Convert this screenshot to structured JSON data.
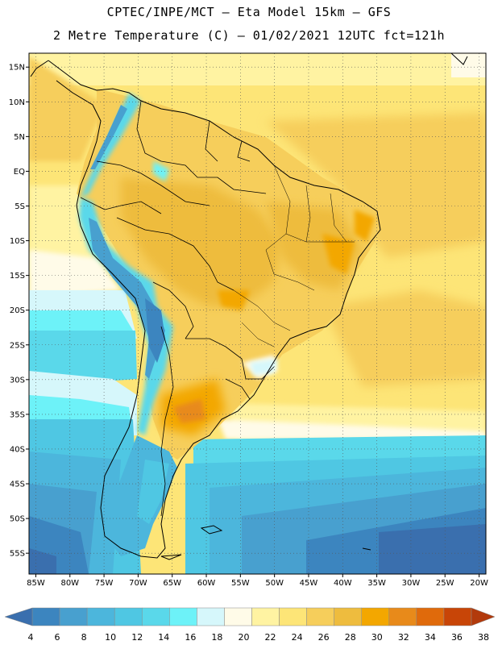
{
  "header": {
    "line1": "CPTEC/INPE/MCT –  Eta Model 15km – GFS",
    "line2": "2 Metre Temperature (C) – 01/02/2021 12UTC fct=121h"
  },
  "map": {
    "lon_labels": [
      "85W",
      "80W",
      "75W",
      "70W",
      "65W",
      "60W",
      "55W",
      "50W",
      "45W",
      "40W",
      "35W",
      "30W",
      "25W",
      "20W"
    ],
    "lat_labels": [
      "15N",
      "10N",
      "5N",
      "EQ",
      "5S",
      "10S",
      "15S",
      "20S",
      "25S",
      "30S",
      "35S",
      "40S",
      "45S",
      "50S",
      "55S"
    ],
    "lon_range": [
      -86,
      -19
    ],
    "lat_range": [
      17,
      -58
    ],
    "grid": "dotted"
  },
  "colorbar": {
    "values": [
      "4",
      "6",
      "8",
      "10",
      "12",
      "14",
      "16",
      "18",
      "20",
      "22",
      "24",
      "26",
      "28",
      "30",
      "32",
      "34",
      "36",
      "38"
    ],
    "colors": [
      "#3a6fae",
      "#3c85bf",
      "#48a0cf",
      "#4cb6dc",
      "#4fc7e3",
      "#5ad8ea",
      "#6df2f8",
      "#d6f7fb",
      "#fffbe8",
      "#fff3a2",
      "#fde577",
      "#f6ce5b",
      "#eebc3e",
      "#f3a700",
      "#e88a1a",
      "#e06a0b",
      "#c84507",
      "#b23a0c"
    ]
  }
}
